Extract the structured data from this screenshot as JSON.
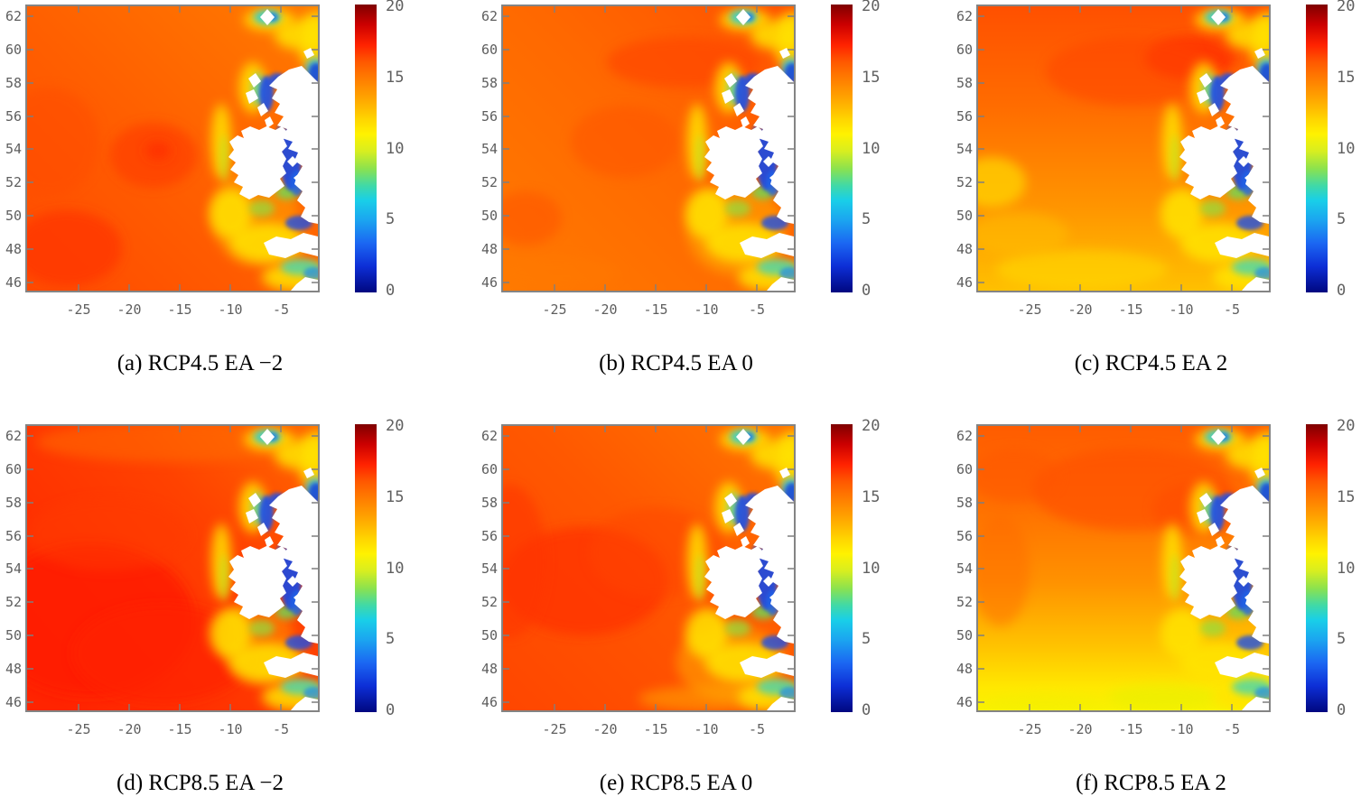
{
  "chart_data": {
    "type": "heatmap",
    "subtype": "filled-contour map grid (jet colormap), NE Atlantic around Ireland and Great Britain, land masked white",
    "grid": {
      "rows": 2,
      "cols": 3
    },
    "x_axis": {
      "ticks": [
        "-25",
        "-20",
        "-15",
        "-10",
        "-5"
      ],
      "range": [
        -29.9,
        -1.3
      ],
      "meaning": "longitude"
    },
    "y_axis": {
      "ticks": [
        "62",
        "60",
        "58",
        "56",
        "54",
        "52",
        "50",
        "48",
        "46"
      ],
      "range": [
        45.5,
        62.6
      ],
      "meaning": "latitude"
    },
    "colorbar": {
      "range": [
        0,
        20
      ],
      "ticks": [
        "20",
        "15",
        "10",
        "5",
        "0"
      ],
      "colormap": "jet"
    },
    "panels": [
      {
        "id": "a",
        "caption": "(a) RCP4.5 EA −2",
        "scenario": "RCP4.5",
        "ea": -2,
        "field_summary": {
          "offshore_west": 15,
          "hotspots": 16,
          "coastal_band": 12,
          "irish_sea_channels": 5
        },
        "render": {
          "dir": [
            1,
            0,
            0,
            1
          ],
          "stops": [
            [
              "0%",
              "#ff7b00"
            ],
            [
              "50%",
              "#ff6000"
            ],
            [
              "100%",
              "#ff4a00"
            ]
          ],
          "hotspots": [
            [
              140,
              165,
              48,
              36,
              "#ff4000",
              0.75
            ],
            [
              145,
              160,
              14,
              10,
              "#ff2d00",
              0.8
            ],
            [
              45,
              268,
              60,
              42,
              "#ff3600",
              0.75
            ],
            [
              25,
              150,
              55,
              60,
              "#ff4c00",
              0.5
            ],
            [
              252,
              232,
              48,
              55,
              "#ff9a00",
              0.65
            ]
          ]
        }
      },
      {
        "id": "b",
        "caption": "(b) RCP4.5 EA 0",
        "scenario": "RCP4.5",
        "ea": 0,
        "field_summary": {
          "offshore_west": 15,
          "north_band": 15.5,
          "coastal_band": 12,
          "irish_sea_channels": 5
        },
        "render": {
          "dir": [
            0,
            1,
            1,
            0
          ],
          "stops": [
            [
              "0%",
              "#ff7a00"
            ],
            [
              "55%",
              "#ff6800"
            ],
            [
              "100%",
              "#ff5200"
            ]
          ],
          "hotspots": [
            [
              200,
              62,
              85,
              28,
              "#ff4600",
              0.7
            ],
            [
              135,
              150,
              60,
              40,
              "#ff5400",
              0.55
            ],
            [
              258,
              248,
              55,
              50,
              "#ff9e00",
              0.7
            ],
            [
              60,
              295,
              70,
              18,
              "#ff7a00",
              0.4
            ],
            [
              25,
              235,
              40,
              30,
              "#ff5000",
              0.5
            ]
          ]
        }
      },
      {
        "id": "c",
        "caption": "(c) RCP4.5 EA 2",
        "scenario": "RCP4.5",
        "ea": 2,
        "field_summary": {
          "north": 15.5,
          "northeast_hotspot": 16.5,
          "south": 13.5,
          "irish_sea_channels": 5
        },
        "render": {
          "dir": [
            0,
            0,
            0,
            1
          ],
          "stops": [
            [
              "0%",
              "#ff5000"
            ],
            [
              "35%",
              "#ff6c00"
            ],
            [
              "70%",
              "#ff9400"
            ],
            [
              "100%",
              "#ffc000"
            ]
          ],
          "hotspots": [
            [
              235,
              57,
              50,
              24,
              "#ff3000",
              0.85
            ],
            [
              170,
              72,
              95,
              38,
              "#ff4400",
              0.55
            ],
            [
              290,
              35,
              30,
              18,
              "#ff4a00",
              0.5
            ],
            [
              15,
              195,
              38,
              28,
              "#ffd400",
              0.75
            ],
            [
              115,
              292,
              95,
              22,
              "#ffd800",
              0.6
            ],
            [
              45,
              252,
              55,
              24,
              "#ffc000",
              0.5
            ]
          ]
        }
      },
      {
        "id": "d",
        "caption": "(d) RCP8.5 EA −2",
        "scenario": "RCP8.5",
        "ea": -2,
        "field_summary": {
          "southwest_core": 17,
          "offshore": 15.5,
          "coastal_band": 12.5,
          "irish_sea_channels": 5
        },
        "render": {
          "dir": [
            1,
            0,
            0,
            0.85
          ],
          "stops": [
            [
              "0%",
              "#ff6a00"
            ],
            [
              "38%",
              "#ff4200"
            ],
            [
              "100%",
              "#ff2400"
            ]
          ],
          "hotspots": [
            [
              70,
              215,
              115,
              85,
              "#ff1c00",
              0.85
            ],
            [
              150,
              252,
              100,
              55,
              "#ff2000",
              0.7
            ],
            [
              90,
              120,
              90,
              40,
              "#ff3a00",
              0.5
            ],
            [
              160,
              18,
              150,
              22,
              "#ff7000",
              0.5
            ],
            [
              255,
              238,
              40,
              48,
              "#ff9400",
              0.55
            ]
          ]
        }
      },
      {
        "id": "e",
        "caption": "(e) RCP8.5 EA 0",
        "scenario": "RCP8.5",
        "ea": 0,
        "field_summary": {
          "west_core": 16.5,
          "offshore": 15.5,
          "southeast": 13.5,
          "irish_sea_channels": 5
        },
        "render": {
          "dir": [
            1,
            0,
            0,
            1
          ],
          "stops": [
            [
              "0%",
              "#ff7600"
            ],
            [
              "45%",
              "#ff5800"
            ],
            [
              "100%",
              "#ff4600"
            ]
          ],
          "hotspots": [
            [
              90,
              172,
              92,
              60,
              "#ff3000",
              0.75
            ],
            [
              8,
              150,
              40,
              85,
              "#ff3600",
              0.6
            ],
            [
              170,
              140,
              75,
              50,
              "#ff4400",
              0.5
            ],
            [
              252,
              262,
              60,
              42,
              "#ff9c00",
              0.65
            ],
            [
              225,
              302,
              75,
              14,
              "#ffb000",
              0.5
            ]
          ]
        }
      },
      {
        "id": "f",
        "caption": "(f) RCP8.5 EA 2",
        "scenario": "RCP8.5",
        "ea": 2,
        "field_summary": {
          "north": 15.5,
          "middle": 14,
          "south_band": 12.5,
          "southeast_coast": 11,
          "irish_sea_channels": 5
        },
        "render": {
          "dir": [
            0,
            0,
            0,
            1
          ],
          "stops": [
            [
              "0%",
              "#ff5c00"
            ],
            [
              "30%",
              "#ff7200"
            ],
            [
              "55%",
              "#ff9200"
            ],
            [
              "78%",
              "#ffc400"
            ],
            [
              "92%",
              "#ffe800"
            ],
            [
              "100%",
              "#f8f200"
            ]
          ],
          "hotspots": [
            [
              170,
              70,
              110,
              46,
              "#ff5000",
              0.65
            ],
            [
              245,
              92,
              52,
              30,
              "#ff4800",
              0.5
            ],
            [
              40,
              55,
              50,
              30,
              "#ff5400",
              0.5
            ],
            [
              25,
              160,
              32,
              62,
              "#ff6800",
              0.45
            ],
            [
              205,
              300,
              62,
              14,
              "#e6f000",
              0.55
            ],
            [
              75,
              306,
              62,
              11,
              "#f2ee00",
              0.45
            ]
          ]
        }
      }
    ]
  }
}
